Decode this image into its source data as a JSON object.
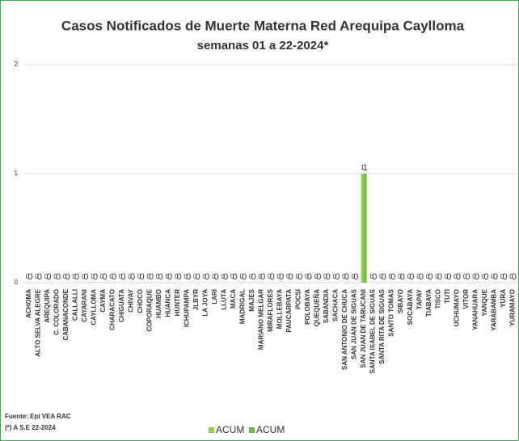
{
  "chart_data": {
    "type": "bar",
    "title": "Casos Notificados de Muerte Materna Red Arequipa Caylloma",
    "subtitle": "semanas 01 a 22-2024*",
    "categories": [
      "ACHOMA",
      "ALTO SELVA ALEGRE",
      "AREQUIPA",
      "C. COLORADO",
      "CABANACONDE",
      "CALLALLI",
      "CAYARANI",
      "CAYLLOMA",
      "CAYMA",
      "CHARACATO",
      "CHIGUATA",
      "CHIVAY",
      "CHOCO",
      "COPORAQUE",
      "HUAMBO",
      "HUANCA",
      "HUNTER",
      "ICHUPAMPA",
      "JLBYR",
      "LA JOYA",
      "LARI",
      "LLUTA",
      "MACA",
      "MADRIGAL",
      "MAJES",
      "MARIANO MELGAR",
      "MIRAFLORES",
      "MOLLEBAYA",
      "PAUCARPATA",
      "POCSI",
      "POLOBAYA",
      "QUEQUEÑA",
      "SABANDIA",
      "SACHACA",
      "SAN ANTONIO DE CHUCA",
      "SAN JUAN DE SIGUAS",
      "SAN JUAN DE TARUCANI",
      "SANTA ISABEL DE SIGUAS",
      "SANTA RITA DE SIGUAS",
      "SANTO TOMAS",
      "SIBAYO",
      "SOCABAYA",
      "TAPAY",
      "TIABAYA",
      "TISCO",
      "TUTI",
      "UCHUMAYO",
      "VITOR",
      "YANAHUARA",
      "YANQUE",
      "YARABAMBA",
      "YURA",
      "YURAMAYO"
    ],
    "series": [
      {
        "name": "ACUM",
        "color": "#8fcf4c",
        "values": [
          0,
          0,
          0,
          0,
          0,
          0,
          0,
          0,
          0,
          0,
          0,
          0,
          0,
          0,
          0,
          0,
          0,
          0,
          0,
          0,
          0,
          0,
          0,
          0,
          0,
          0,
          0,
          0,
          0,
          0,
          0,
          0,
          0,
          0,
          0,
          0,
          1,
          0,
          0,
          0,
          0,
          0,
          0,
          0,
          0,
          0,
          0,
          0,
          0,
          0,
          0,
          0,
          0
        ]
      },
      {
        "name": "ACUM",
        "color": "#6cbf3a",
        "values": [
          0,
          0,
          0,
          0,
          0,
          0,
          0,
          0,
          0,
          0,
          0,
          0,
          0,
          0,
          0,
          0,
          0,
          0,
          0,
          0,
          0,
          0,
          0,
          0,
          0,
          0,
          0,
          0,
          0,
          0,
          0,
          0,
          0,
          0,
          0,
          0,
          1,
          0,
          0,
          0,
          0,
          0,
          0,
          0,
          0,
          0,
          0,
          0,
          0,
          0,
          0,
          0,
          0
        ]
      }
    ],
    "ylim": [
      0,
      2
    ],
    "yticks": [
      0,
      1,
      2
    ],
    "grid": true,
    "source": "Fuente: Epi VEA RAC",
    "note": "(*) A S.E 22-2024"
  }
}
